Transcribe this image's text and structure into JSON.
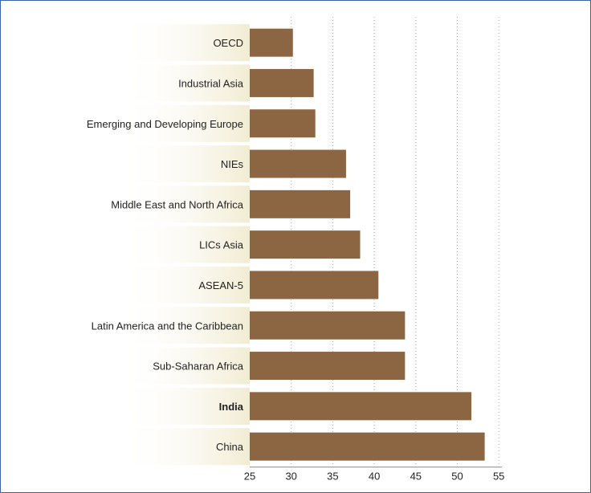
{
  "chart_data": {
    "type": "bar",
    "orientation": "horizontal",
    "categories": [
      "OECD",
      "Industrial Asia",
      "Emerging and Developing Europe",
      "NIEs",
      "Middle East and North Africa",
      "LICs Asia",
      "ASEAN-5",
      "Latin America and the Caribbean",
      "Sub-Saharan Africa",
      "India",
      "China"
    ],
    "values": [
      30.2,
      32.7,
      32.9,
      36.6,
      37.1,
      38.3,
      40.5,
      43.7,
      43.7,
      51.7,
      53.3
    ],
    "highlight": "India",
    "title": "",
    "xlabel": "",
    "ylabel": "",
    "xlim": [
      25,
      55
    ],
    "xticks": [
      "25",
      "30",
      "35",
      "40",
      "45",
      "50",
      "55"
    ],
    "grid": "vertical dotted",
    "bar_color": "#8c6642",
    "label_band_color": "#f1ecd2"
  }
}
